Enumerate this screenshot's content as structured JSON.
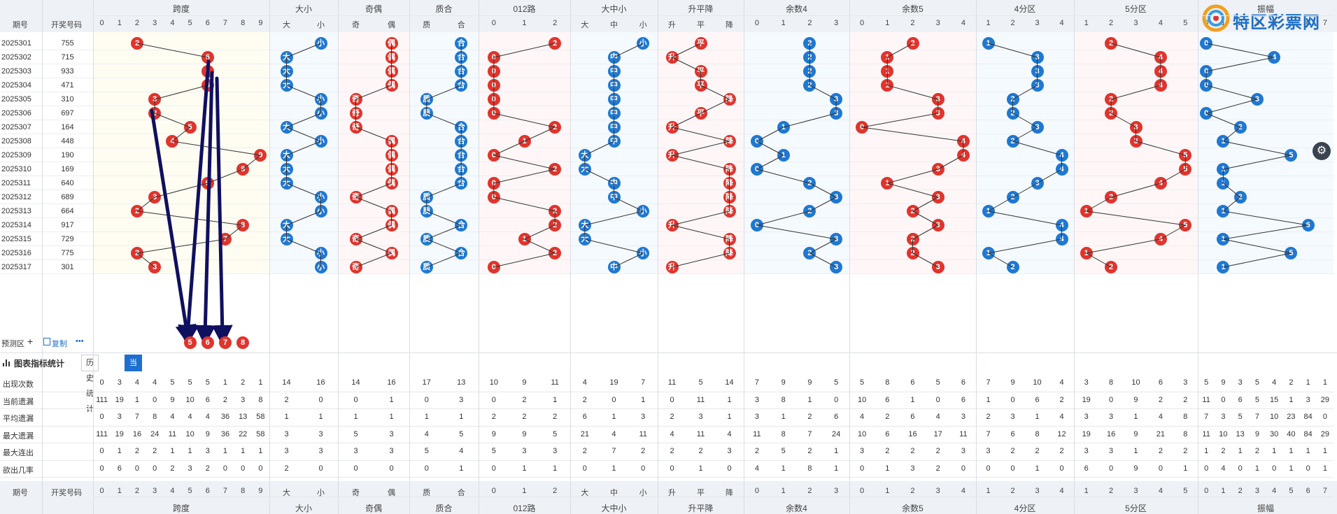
{
  "header": {
    "issue_label": "期号",
    "code_label": "开奖号码",
    "groups": [
      {
        "label": "跨度",
        "subs": [
          "0",
          "1",
          "2",
          "3",
          "4",
          "5",
          "6",
          "7",
          "8",
          "9"
        ]
      },
      {
        "label": "大小",
        "subs": [
          "大",
          "小"
        ]
      },
      {
        "label": "奇偶",
        "subs": [
          "奇",
          "偶"
        ]
      },
      {
        "label": "质合",
        "subs": [
          "质",
          "合"
        ]
      },
      {
        "label": "012路",
        "subs": [
          "0",
          "1",
          "2"
        ]
      },
      {
        "label": "大中小",
        "subs": [
          "大",
          "中",
          "小"
        ]
      },
      {
        "label": "升平降",
        "subs": [
          "升",
          "平",
          "降"
        ]
      },
      {
        "label": "余数4",
        "subs": [
          "0",
          "1",
          "2",
          "3"
        ]
      },
      {
        "label": "余数5",
        "subs": [
          "0",
          "1",
          "2",
          "3",
          "4"
        ]
      },
      {
        "label": "4分区",
        "subs": [
          "1",
          "2",
          "3",
          "4"
        ]
      },
      {
        "label": "5分区",
        "subs": [
          "1",
          "2",
          "3",
          "4",
          "5"
        ]
      },
      {
        "label": "振幅",
        "subs": [
          "0",
          "1",
          "2",
          "3",
          "4",
          "5",
          "6",
          "7"
        ]
      }
    ]
  },
  "logo": {
    "text": "特区彩票网"
  },
  "rows": [
    {
      "issue": "2025301",
      "code": "755",
      "span": 2,
      "ds": 1,
      "oe": 1,
      "pc": 1,
      "r012": 2,
      "bms": 2,
      "ud": 1,
      "m4": 2,
      "m5": 2,
      "z4": 0,
      "z5": 1,
      "amp": 0
    },
    {
      "issue": "2025302",
      "code": "715",
      "span": 6,
      "ds": 0,
      "oe": 1,
      "pc": 1,
      "r012": 0,
      "bms": 1,
      "ud": 0,
      "m4": 2,
      "m5": 1,
      "z4": 2,
      "z5": 3,
      "amp": 4
    },
    {
      "issue": "2025303",
      "code": "933",
      "span": 6,
      "ds": 0,
      "oe": 1,
      "pc": 1,
      "r012": 0,
      "bms": 1,
      "ud": 1,
      "m4": 2,
      "m5": 1,
      "z4": 2,
      "z5": 3,
      "amp": 0
    },
    {
      "issue": "2025304",
      "code": "471",
      "span": 6,
      "ds": 0,
      "oe": 1,
      "pc": 1,
      "r012": 0,
      "bms": 1,
      "ud": 1,
      "m4": 2,
      "m5": 1,
      "z4": 2,
      "z5": 3,
      "amp": 0
    },
    {
      "issue": "2025305",
      "code": "310",
      "span": 3,
      "ds": 1,
      "oe": 0,
      "pc": 0,
      "r012": 0,
      "bms": 1,
      "ud": 2,
      "m4": 3,
      "m5": 3,
      "z4": 1,
      "z5": 1,
      "amp": 3
    },
    {
      "issue": "2025306",
      "code": "697",
      "span": 3,
      "ds": 1,
      "oe": 0,
      "pc": 0,
      "r012": 0,
      "bms": 1,
      "ud": 1,
      "m4": 3,
      "m5": 3,
      "z4": 1,
      "z5": 1,
      "amp": 0
    },
    {
      "issue": "2025307",
      "code": "164",
      "span": 5,
      "ds": 0,
      "oe": 0,
      "pc": 1,
      "r012": 2,
      "bms": 1,
      "ud": 0,
      "m4": 1,
      "m5": 0,
      "z4": 2,
      "z5": 2,
      "amp": 2
    },
    {
      "issue": "2025308",
      "code": "448",
      "span": 4,
      "ds": 1,
      "oe": 1,
      "pc": 1,
      "r012": 1,
      "bms": 1,
      "ud": 2,
      "m4": 0,
      "m5": 4,
      "z4": 1,
      "z5": 2,
      "amp": 1
    },
    {
      "issue": "2025309",
      "code": "190",
      "span": 9,
      "ds": 0,
      "oe": 1,
      "pc": 1,
      "r012": 0,
      "bms": 0,
      "ud": 0,
      "m4": 1,
      "m5": 4,
      "z4": 3,
      "z5": 4,
      "amp": 5
    },
    {
      "issue": "2025310",
      "code": "169",
      "span": 8,
      "ds": 0,
      "oe": 1,
      "pc": 1,
      "r012": 2,
      "bms": 0,
      "ud": 2,
      "m4": 0,
      "m5": 3,
      "z4": 3,
      "z5": 4,
      "amp": 1
    },
    {
      "issue": "2025311",
      "code": "640",
      "span": 6,
      "ds": 0,
      "oe": 1,
      "pc": 1,
      "r012": 0,
      "bms": 1,
      "ud": 2,
      "m4": 2,
      "m5": 1,
      "z4": 2,
      "z5": 3,
      "amp": 1
    },
    {
      "issue": "2025312",
      "code": "689",
      "span": 3,
      "ds": 1,
      "oe": 0,
      "pc": 0,
      "r012": 0,
      "bms": 1,
      "ud": 2,
      "m4": 3,
      "m5": 3,
      "z4": 1,
      "z5": 1,
      "amp": 2
    },
    {
      "issue": "2025313",
      "code": "664",
      "span": 2,
      "ds": 1,
      "oe": 1,
      "pc": 0,
      "r012": 2,
      "bms": 2,
      "ud": 2,
      "m4": 2,
      "m5": 2,
      "z4": 0,
      "z5": 0,
      "amp": 1
    },
    {
      "issue": "2025314",
      "code": "917",
      "span": 8,
      "ds": 0,
      "oe": 1,
      "pc": 1,
      "r012": 2,
      "bms": 0,
      "ud": 0,
      "m4": 0,
      "m5": 3,
      "z4": 3,
      "z5": 4,
      "amp": 6
    },
    {
      "issue": "2025315",
      "code": "729",
      "span": 7,
      "ds": 0,
      "oe": 0,
      "pc": 0,
      "r012": 1,
      "bms": 0,
      "ud": 2,
      "m4": 3,
      "m5": 2,
      "z4": 3,
      "z5": 3,
      "amp": 1
    },
    {
      "issue": "2025316",
      "code": "775",
      "span": 2,
      "ds": 1,
      "oe": 1,
      "pc": 1,
      "r012": 2,
      "bms": 2,
      "ud": 2,
      "m4": 2,
      "m5": 2,
      "z4": 0,
      "z5": 0,
      "amp": 5
    },
    {
      "issue": "2025317",
      "code": "301",
      "span": 3,
      "ds": 1,
      "oe": 0,
      "pc": 0,
      "r012": 0,
      "bms": 1,
      "ud": 0,
      "m4": 3,
      "m5": 3,
      "z4": 1,
      "z5": 1,
      "amp": 1
    }
  ],
  "predict": {
    "label": "预测区",
    "copy_label": "复制",
    "more_label": "•••",
    "balls": [
      "5",
      "6",
      "7",
      "8"
    ]
  },
  "stats_section": {
    "title": "图表指标统计",
    "tab_history": "历史统计",
    "tab_current": "当前页统计",
    "rows": [
      {
        "label": "出现次数",
        "values": [
          "0",
          "3",
          "4",
          "4",
          "5",
          "5",
          "5",
          "1",
          "2",
          "1",
          "14",
          "16",
          "14",
          "16",
          "17",
          "13",
          "10",
          "9",
          "11",
          "4",
          "19",
          "7",
          "11",
          "5",
          "14",
          "7",
          "9",
          "9",
          "5",
          "5",
          "8",
          "6",
          "5",
          "6",
          "7",
          "9",
          "10",
          "4",
          "3",
          "8",
          "10",
          "6",
          "3",
          "5",
          "9",
          "3",
          "5",
          "4",
          "2",
          "1",
          "1"
        ]
      },
      {
        "label": "当前遗漏",
        "values": [
          "111",
          "19",
          "1",
          "0",
          "9",
          "10",
          "6",
          "2",
          "3",
          "8",
          "2",
          "0",
          "0",
          "1",
          "0",
          "3",
          "0",
          "2",
          "1",
          "2",
          "0",
          "1",
          "0",
          "11",
          "1",
          "3",
          "8",
          "1",
          "0",
          "10",
          "6",
          "1",
          "0",
          "6",
          "1",
          "0",
          "6",
          "2",
          "19",
          "0",
          "9",
          "2",
          "2",
          "11",
          "0",
          "6",
          "5",
          "15",
          "1",
          "3",
          "29"
        ]
      },
      {
        "label": "平均遗漏",
        "values": [
          "0",
          "3",
          "7",
          "8",
          "4",
          "4",
          "4",
          "36",
          "13",
          "58",
          "1",
          "1",
          "1",
          "1",
          "1",
          "1",
          "2",
          "2",
          "2",
          "6",
          "1",
          "3",
          "2",
          "3",
          "1",
          "3",
          "1",
          "2",
          "6",
          "4",
          "2",
          "6",
          "4",
          "3",
          "2",
          "3",
          "1",
          "4",
          "3",
          "3",
          "1",
          "4",
          "8",
          "7",
          "3",
          "5",
          "7",
          "10",
          "23",
          "84",
          "0"
        ]
      },
      {
        "label": "最大遗漏",
        "values": [
          "111",
          "19",
          "16",
          "24",
          "11",
          "10",
          "9",
          "36",
          "22",
          "58",
          "3",
          "3",
          "5",
          "3",
          "4",
          "5",
          "9",
          "9",
          "5",
          "21",
          "4",
          "11",
          "4",
          "11",
          "4",
          "11",
          "8",
          "7",
          "24",
          "10",
          "6",
          "16",
          "17",
          "11",
          "7",
          "6",
          "8",
          "12",
          "19",
          "16",
          "9",
          "21",
          "8",
          "11",
          "10",
          "13",
          "9",
          "30",
          "40",
          "84",
          "29"
        ]
      },
      {
        "label": "最大连出",
        "values": [
          "0",
          "1",
          "2",
          "2",
          "1",
          "1",
          "3",
          "1",
          "1",
          "1",
          "3",
          "3",
          "3",
          "3",
          "5",
          "4",
          "5",
          "3",
          "3",
          "2",
          "7",
          "2",
          "2",
          "2",
          "3",
          "2",
          "5",
          "2",
          "1",
          "3",
          "2",
          "2",
          "2",
          "3",
          "3",
          "2",
          "2",
          "2",
          "3",
          "3",
          "1",
          "2",
          "2",
          "1",
          "2",
          "1",
          "2",
          "1",
          "1",
          "1",
          "1"
        ]
      },
      {
        "label": "欲出几率",
        "values": [
          "0",
          "6",
          "0",
          "0",
          "2",
          "3",
          "2",
          "0",
          "0",
          "0",
          "2",
          "0",
          "0",
          "0",
          "0",
          "1",
          "0",
          "1",
          "1",
          "0",
          "1",
          "0",
          "0",
          "1",
          "0",
          "4",
          "1",
          "8",
          "1",
          "0",
          "1",
          "3",
          "2",
          "0",
          "0",
          "0",
          "1",
          "0",
          "6",
          "0",
          "9",
          "0",
          "1",
          "0",
          "4",
          "0",
          "1",
          "0",
          "1",
          "0",
          "1"
        ]
      }
    ]
  },
  "footer": {
    "issue_label": "期号",
    "code_label": "开奖号码"
  },
  "colors": {
    "red": "#e0342c",
    "blue": "#1f78d1",
    "arrow": "#101060",
    "header_bg": "#eef1f5"
  }
}
